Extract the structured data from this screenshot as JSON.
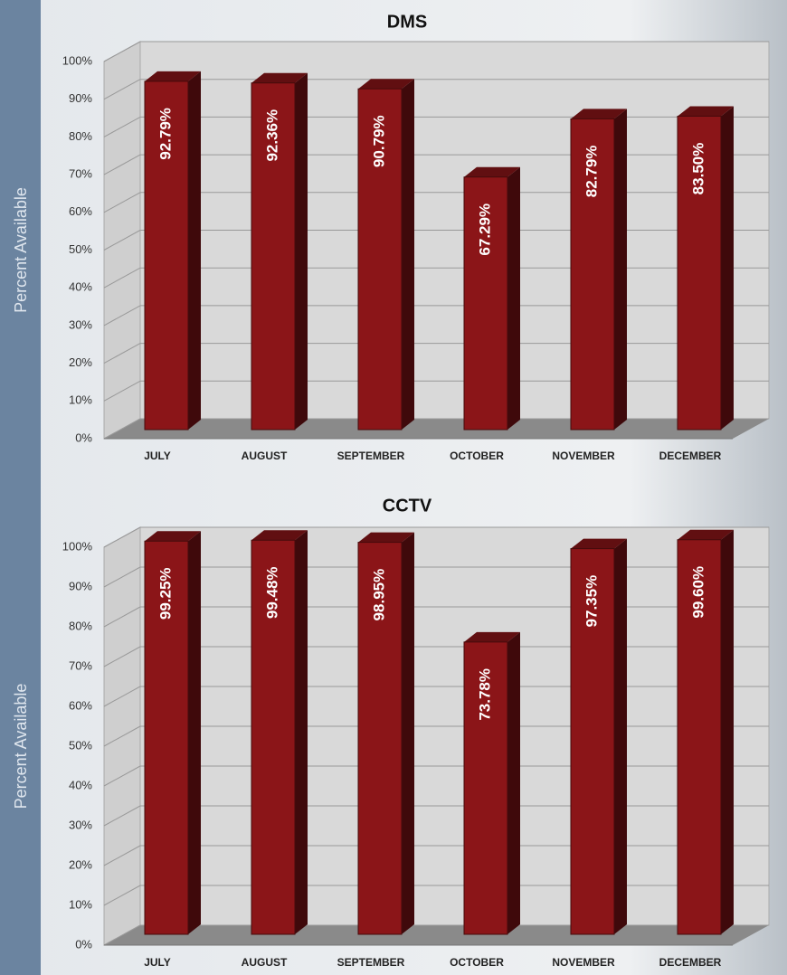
{
  "chart_data": [
    {
      "type": "bar3d",
      "title": "DMS",
      "y_label": "Percent Available",
      "categories": [
        "JULY",
        "AUGUST",
        "SEPTEMBER",
        "OCTOBER",
        "NOVEMBER",
        "DECEMBER"
      ],
      "values": [
        92.79,
        92.36,
        90.79,
        67.29,
        82.79,
        83.5
      ],
      "value_labels": [
        "92.79%",
        "92.36%",
        "90.79%",
        "67.29%",
        "82.79%",
        "83.50%"
      ],
      "color": "#8b1518",
      "ylim": [
        0,
        100
      ],
      "yticks": [
        {
          "value": 0,
          "label": "0%"
        },
        {
          "value": 10,
          "label": "10%"
        },
        {
          "value": 20,
          "label": "20%"
        },
        {
          "value": 30,
          "label": "30%"
        },
        {
          "value": 40,
          "label": "40%"
        },
        {
          "value": 50,
          "label": "50%"
        },
        {
          "value": 60,
          "label": "60%"
        },
        {
          "value": 70,
          "label": "70%"
        },
        {
          "value": 80,
          "label": "80%"
        },
        {
          "value": 90,
          "label": "90%"
        },
        {
          "value": 100,
          "label": "100%"
        }
      ],
      "grid": true
    },
    {
      "type": "bar3d",
      "title": "CCTV",
      "y_label": "Percent Available",
      "categories": [
        "JULY",
        "AUGUST",
        "SEPTEMBER",
        "OCTOBER",
        "NOVEMBER",
        "DECEMBER"
      ],
      "values": [
        99.25,
        99.48,
        98.95,
        73.78,
        97.35,
        99.6
      ],
      "value_labels": [
        "99.25%",
        "99.48%",
        "98.95%",
        "73.78%",
        "97.35%",
        "99.60%"
      ],
      "color": "#8b1518",
      "ylim": [
        0,
        100
      ],
      "yticks": [
        {
          "value": 0,
          "label": "0%"
        },
        {
          "value": 10,
          "label": "10%"
        },
        {
          "value": 20,
          "label": "20%"
        },
        {
          "value": 30,
          "label": "30%"
        },
        {
          "value": 40,
          "label": "40%"
        },
        {
          "value": 50,
          "label": "50%"
        },
        {
          "value": 60,
          "label": "60%"
        },
        {
          "value": 70,
          "label": "70%"
        },
        {
          "value": 80,
          "label": "80%"
        },
        {
          "value": 90,
          "label": "90%"
        },
        {
          "value": 100,
          "label": "100%"
        }
      ],
      "grid": true
    }
  ]
}
